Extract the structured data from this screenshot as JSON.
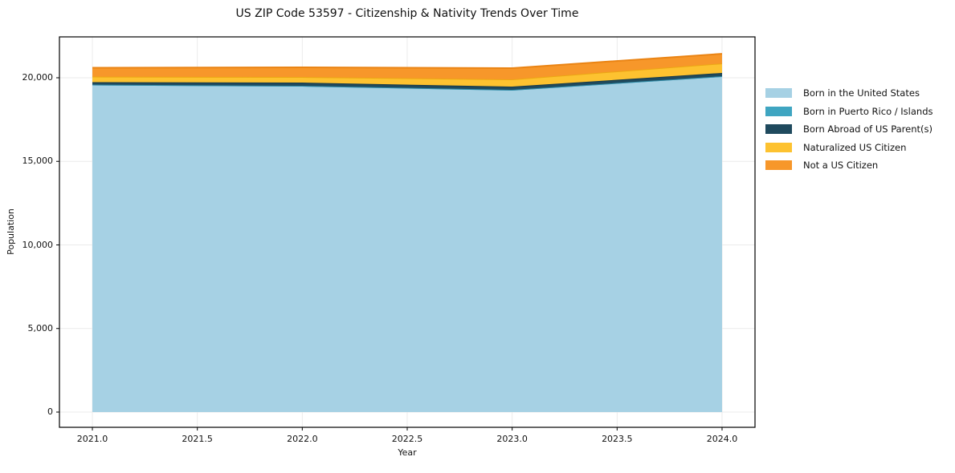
{
  "chart_data": {
    "type": "area",
    "stacked": true,
    "title": "US ZIP Code 53597 - Citizenship & Nativity Trends Over Time",
    "xlabel": "Year",
    "ylabel": "Population",
    "x": [
      2021,
      2022,
      2023,
      2024
    ],
    "series": [
      {
        "name": "Born in the United States",
        "color": "#a6d1e4",
        "line": "#58abcd",
        "values": [
          19590,
          19520,
          19280,
          20095
        ]
      },
      {
        "name": "Born in Puerto Rico / Islands",
        "color": "#3fa5c1",
        "line": "#2f8aa5",
        "values": [
          0,
          0,
          0,
          0
        ]
      },
      {
        "name": "Born Abroad of US Parent(s)",
        "color": "#1f4a5e",
        "line": "#173a4a",
        "values": [
          145,
          190,
          190,
          195
        ]
      },
      {
        "name": "Naturalized US Citizen",
        "color": "#fdc230",
        "line": "#eca714",
        "values": [
          335,
          335,
          435,
          570
        ]
      },
      {
        "name": "Not a US Citizen",
        "color": "#f7972a",
        "line": "#ea8414",
        "values": [
          530,
          580,
          670,
          575
        ]
      }
    ],
    "x_ticks": {
      "values": [
        2021.0,
        2021.5,
        2022.0,
        2022.5,
        2023.0,
        2023.5,
        2024.0
      ],
      "labels": [
        "2021.0",
        "2021.5",
        "2022.0",
        "2022.5",
        "2023.0",
        "2023.5",
        "2024.0"
      ]
    },
    "y_ticks": {
      "values": [
        0,
        5000,
        10000,
        15000,
        20000
      ],
      "labels": [
        "0",
        "5,000",
        "10,000",
        "15,000",
        "20,000"
      ]
    },
    "xlim": [
      2020.843,
      2024.157
    ],
    "ylim": [
      -911,
      22446
    ],
    "grid": true,
    "grid_color": "#ebebeb",
    "frame_color": "#000000",
    "legend_position": "right"
  }
}
